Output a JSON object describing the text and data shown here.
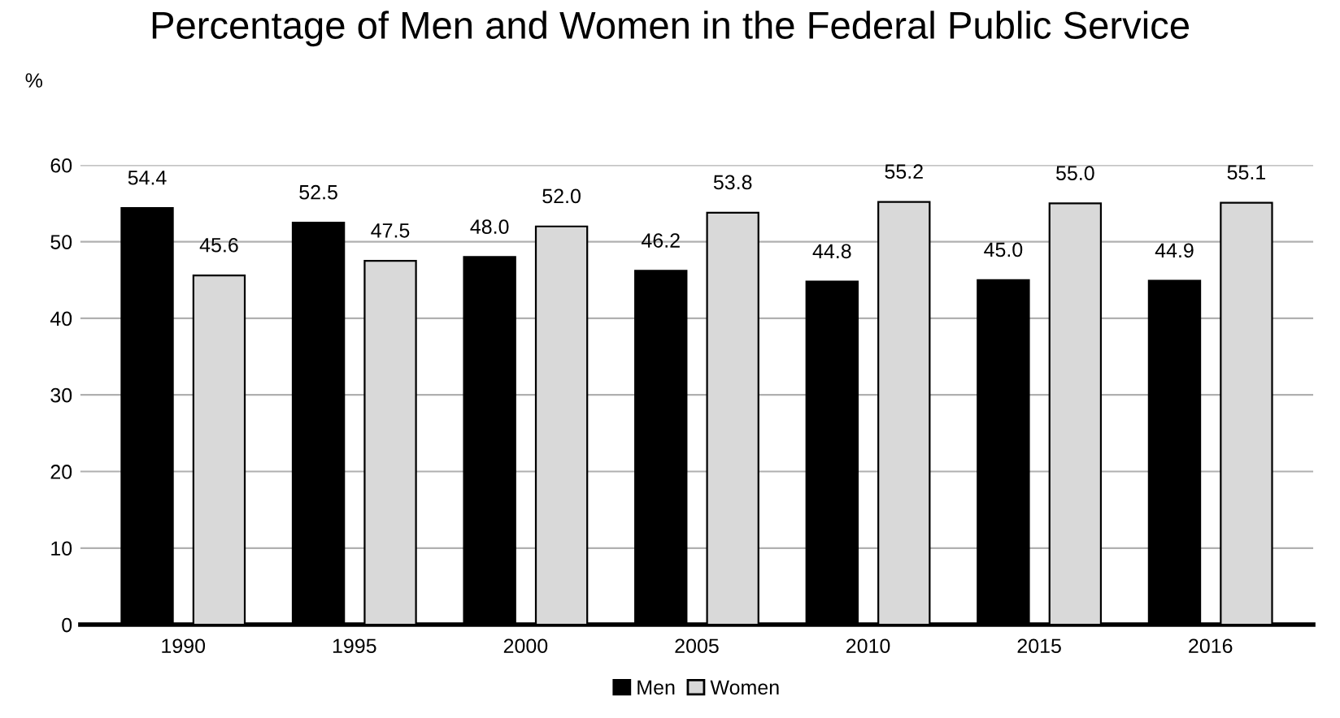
{
  "chart_data": {
    "type": "bar",
    "title": "Percentage of Men and Women in the Federal Public Service",
    "ylabel": "%",
    "categories": [
      "1990",
      "1995",
      "2000",
      "2005",
      "2010",
      "2015",
      "2016"
    ],
    "series": [
      {
        "name": "Men",
        "color": "#000000",
        "values": [
          54.4,
          52.5,
          48.0,
          46.2,
          44.8,
          45.0,
          44.9
        ],
        "value_labels": [
          "54.4",
          "52.5",
          "48.0",
          "46.2",
          "44.8",
          "45.0",
          "44.9"
        ]
      },
      {
        "name": "Women",
        "color": "#d9d9d9",
        "values": [
          45.6,
          47.5,
          52.0,
          53.8,
          55.2,
          55.0,
          55.1
        ],
        "value_labels": [
          "45.6",
          "47.5",
          "52.0",
          "53.8",
          "55.2",
          "55.0",
          "55.1"
        ]
      }
    ],
    "ylim": [
      0,
      60
    ],
    "yticks": [
      0,
      10,
      20,
      30,
      40,
      50,
      60
    ],
    "grid": "y",
    "legend": "bottom"
  }
}
